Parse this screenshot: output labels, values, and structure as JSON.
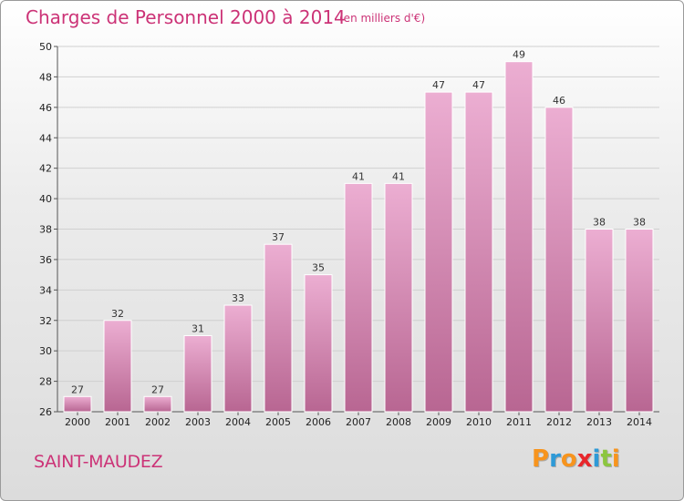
{
  "title": "Charges de Personnel 2000 à 2014",
  "subtitle": "(en milliers d'€)",
  "commune": "SAINT-MAUDEZ",
  "logo": {
    "text": "Proxiti",
    "letters": [
      "P",
      "r",
      "o",
      "x",
      "i",
      "t",
      "i"
    ],
    "colors": [
      "#f7941d",
      "#2e9ad7",
      "#f7941d",
      "#e8262b",
      "#2e9ad7",
      "#8cc63f",
      "#f7941d"
    ]
  },
  "chart_data": {
    "type": "bar",
    "title": "Charges de Personnel 2000 à 2014",
    "subtitle": "(en milliers d'€)",
    "categories": [
      "2000",
      "2001",
      "2002",
      "2003",
      "2004",
      "2005",
      "2006",
      "2007",
      "2008",
      "2009",
      "2010",
      "2011",
      "2012",
      "2013",
      "2014"
    ],
    "values": [
      27,
      32,
      27,
      31,
      33,
      37,
      35,
      41,
      41,
      47,
      47,
      49,
      46,
      38,
      38
    ],
    "ylim": [
      26,
      50
    ],
    "yticks": [
      26,
      28,
      30,
      32,
      34,
      36,
      38,
      40,
      42,
      44,
      46,
      48,
      50
    ],
    "grid": true,
    "colors": {
      "bar_top": "#ecaed2",
      "bar_bottom": "#b86692",
      "grid": "#d0d0d0"
    }
  }
}
